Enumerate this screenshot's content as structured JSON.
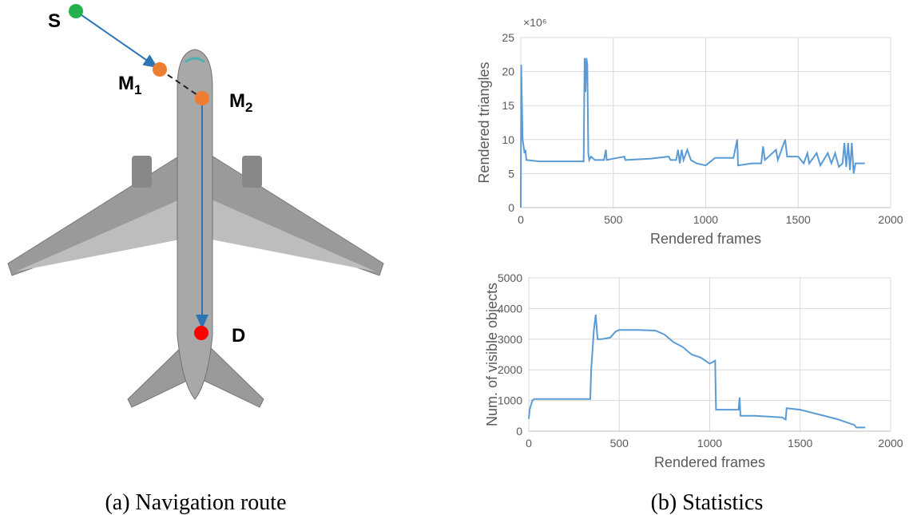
{
  "figure": {
    "route": {
      "nodes": [
        {
          "label": "S"
        },
        {
          "label": "M",
          "subscript": "1"
        },
        {
          "label": "M",
          "subscript": "2"
        },
        {
          "label": "D"
        }
      ]
    },
    "captions": [
      "(a) Navigation route",
      "(b) Statistics"
    ]
  },
  "chart_data": [
    {
      "type": "line",
      "y_multiplier": "×10⁶",
      "xlabel": "Rendered frames",
      "ylabel": "Rendered triangles",
      "xlim": [
        0,
        2000
      ],
      "xticks": [
        0,
        500,
        1000,
        1500,
        2000
      ],
      "ylim": [
        0,
        25
      ],
      "yticks": [
        0,
        5,
        10,
        15,
        20,
        25
      ],
      "grid": true,
      "color": "#5b9bd5",
      "x": [
        0,
        2,
        10,
        15,
        20,
        25,
        30,
        100,
        200,
        340,
        345,
        350,
        355,
        360,
        365,
        370,
        380,
        400,
        450,
        460,
        465,
        500,
        560,
        565,
        700,
        800,
        810,
        840,
        850,
        860,
        870,
        880,
        900,
        920,
        950,
        1000,
        1050,
        1150,
        1170,
        1175,
        1250,
        1300,
        1310,
        1320,
        1380,
        1390,
        1430,
        1440,
        1500,
        1530,
        1550,
        1560,
        1600,
        1620,
        1660,
        1680,
        1700,
        1720,
        1740,
        1750,
        1760,
        1770,
        1780,
        1790,
        1800,
        1810,
        1860
      ],
      "values": [
        0,
        21,
        10,
        9,
        8,
        8.5,
        7,
        6.8,
        6.8,
        6.8,
        22,
        17,
        22,
        21,
        8,
        7,
        7.5,
        7,
        7,
        8.5,
        7,
        7.2,
        7.5,
        7,
        7.2,
        7.5,
        7,
        7,
        8.5,
        6.5,
        8.5,
        7,
        8.5,
        7,
        6.5,
        6.2,
        7.3,
        7.3,
        10,
        6.2,
        6.5,
        6.5,
        9,
        7,
        8.5,
        7,
        10,
        7.5,
        7.5,
        6.5,
        8,
        6.5,
        8,
        6.2,
        8,
        6.5,
        8,
        6,
        6.5,
        9.5,
        6,
        9.5,
        5.5,
        9.5,
        5,
        6.5,
        6.5
      ]
    },
    {
      "type": "line",
      "xlabel": "Rendered frames",
      "ylabel": "Num. of visible objects",
      "xlim": [
        0,
        2000
      ],
      "xticks": [
        0,
        500,
        1000,
        1500,
        2000
      ],
      "ylim": [
        0,
        5000
      ],
      "yticks": [
        0,
        1000,
        2000,
        3000,
        4000,
        5000
      ],
      "grid": true,
      "color": "#5b9bd5",
      "x": [
        0,
        5,
        20,
        30,
        340,
        345,
        360,
        370,
        380,
        400,
        450,
        480,
        500,
        600,
        700,
        750,
        800,
        850,
        880,
        900,
        950,
        1000,
        1030,
        1035,
        1100,
        1160,
        1165,
        1170,
        1250,
        1400,
        1420,
        1425,
        1500,
        1600,
        1700,
        1800,
        1810,
        1860
      ],
      "values": [
        400,
        700,
        1000,
        1050,
        1050,
        2000,
        3300,
        3800,
        3000,
        3000,
        3050,
        3250,
        3300,
        3300,
        3280,
        3150,
        2900,
        2750,
        2600,
        2500,
        2400,
        2200,
        2300,
        700,
        700,
        700,
        1100,
        500,
        500,
        450,
        380,
        750,
        700,
        550,
        400,
        200,
        120,
        120
      ]
    }
  ]
}
